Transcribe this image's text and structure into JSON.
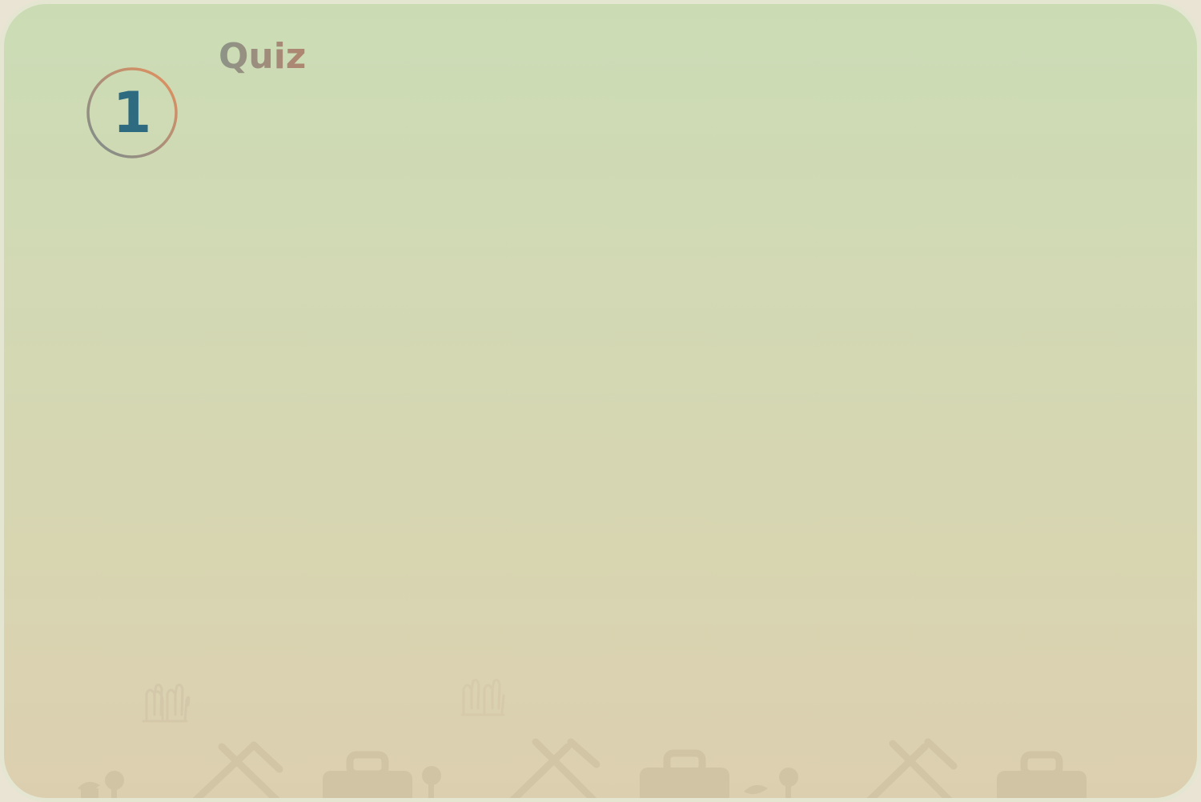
{
  "quiz": {
    "step_number": "1",
    "title": "Quiz"
  },
  "colors": {
    "number": "#2e6b80",
    "badge_ring_start": "#e8915a",
    "badge_ring_end": "#7a8e8c",
    "title_start": "#8c9488",
    "title_end": "#b08670",
    "background_top": "#cbdcb5",
    "background_bottom": "#dccfb0"
  },
  "decorations": {
    "icons": [
      "gloves-icon",
      "sprout-icon",
      "hoe-icon",
      "first-aid-kit-icon"
    ]
  }
}
